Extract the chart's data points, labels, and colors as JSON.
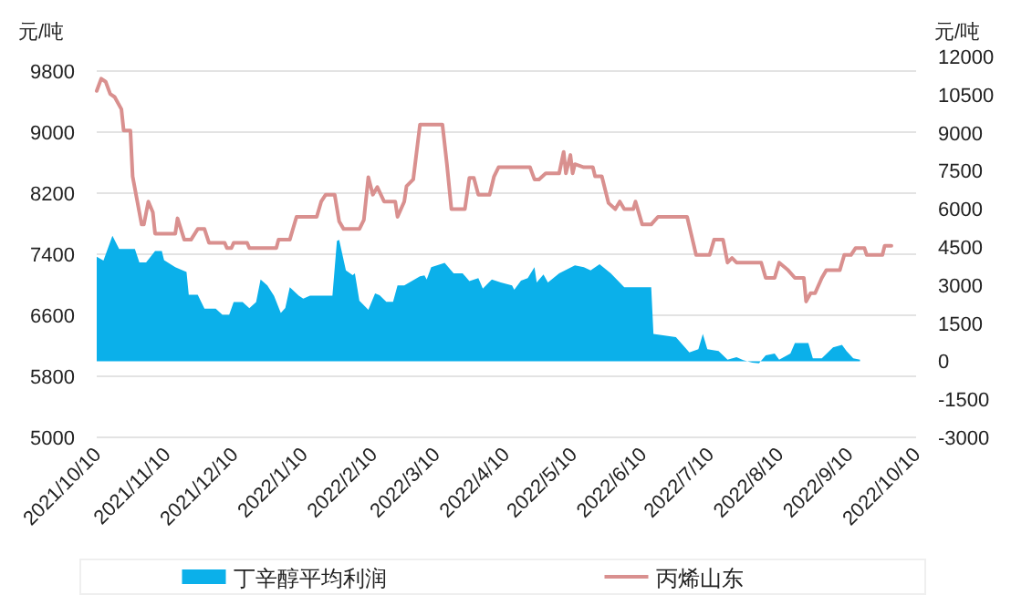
{
  "chart_data": {
    "type": "line",
    "ylabel": "元/吨",
    "y2label": "元/吨",
    "xlim": [
      "2021-10-10",
      "2022-10-10"
    ],
    "xticks": [
      {
        "value": "2021-10-10",
        "label": "2021/10/10"
      },
      {
        "value": "2021-11-10",
        "label": "2021/11/10"
      },
      {
        "value": "2021-12-10",
        "label": "2021/12/10"
      },
      {
        "value": "2022-01-10",
        "label": "2022/1/10"
      },
      {
        "value": "2022-02-10",
        "label": "2022/2/10"
      },
      {
        "value": "2022-03-10",
        "label": "2022/3/10"
      },
      {
        "value": "2022-04-10",
        "label": "2022/4/10"
      },
      {
        "value": "2022-05-10",
        "label": "2022/5/10"
      },
      {
        "value": "2022-06-10",
        "label": "2022/6/10"
      },
      {
        "value": "2022-07-10",
        "label": "2022/7/10"
      },
      {
        "value": "2022-08-10",
        "label": "2022/8/10"
      },
      {
        "value": "2022-09-10",
        "label": "2022/9/10"
      },
      {
        "value": "2022-10-10",
        "label": "2022/10/10"
      }
    ],
    "ylim": [
      5000,
      9800
    ],
    "yticks": [
      5000,
      5800,
      6600,
      7400,
      8200,
      9000,
      9800
    ],
    "y2lim": [
      -3000,
      12000
    ],
    "y2ticks": [
      -3000,
      -1500,
      0,
      1500,
      3000,
      4500,
      6000,
      7500,
      9000,
      10500,
      12000
    ],
    "grid": "y",
    "legend": "bottom",
    "series": [
      {
        "name": "丁辛醇平均利润",
        "type": "area",
        "axis": "y2",
        "color": "#0bb0ea",
        "x": [
          "2021-10-10",
          "2021-10-13",
          "2021-10-17",
          "2021-10-20",
          "2021-10-27",
          "2021-10-29",
          "2021-11-01",
          "2021-11-05",
          "2021-11-08",
          "2021-11-09",
          "2021-11-14",
          "2021-11-19",
          "2021-11-20",
          "2021-11-24",
          "2021-11-27",
          "2021-12-02",
          "2021-12-05",
          "2021-12-08",
          "2021-12-10",
          "2021-12-14",
          "2021-12-17",
          "2021-12-20",
          "2021-12-22",
          "2021-12-25",
          "2021-12-28",
          "2021-12-31",
          "2022-01-02",
          "2022-01-04",
          "2022-01-08",
          "2022-01-10",
          "2022-01-13",
          "2022-01-23",
          "2022-01-25",
          "2022-01-26",
          "2022-01-29",
          "2022-02-01",
          "2022-02-02",
          "2022-02-04",
          "2022-02-08",
          "2022-02-11",
          "2022-02-13",
          "2022-02-16",
          "2022-02-19",
          "2022-02-21",
          "2022-02-24",
          "2022-03-03",
          "2022-03-05",
          "2022-03-06",
          "2022-03-08",
          "2022-03-14",
          "2022-03-18",
          "2022-03-22",
          "2022-03-25",
          "2022-03-29",
          "2022-03-31",
          "2022-04-04",
          "2022-04-08",
          "2022-04-13",
          "2022-04-14",
          "2022-04-17",
          "2022-04-20",
          "2022-04-23",
          "2022-04-24",
          "2022-04-27",
          "2022-04-29",
          "2022-05-04",
          "2022-05-11",
          "2022-05-15",
          "2022-05-18",
          "2022-05-22",
          "2022-05-27",
          "2022-06-02",
          "2022-06-14",
          "2022-06-15",
          "2022-06-25",
          "2022-07-01",
          "2022-07-05",
          "2022-07-07",
          "2022-07-09",
          "2022-07-14",
          "2022-07-18",
          "2022-07-22",
          "2022-07-25",
          "2022-07-29",
          "2022-08-01",
          "2022-08-04",
          "2022-08-08",
          "2022-08-10",
          "2022-08-15",
          "2022-08-17",
          "2022-08-23",
          "2022-08-25",
          "2022-08-29",
          "2022-09-03",
          "2022-09-07",
          "2022-09-09",
          "2022-09-12",
          "2022-09-15"
        ],
        "values": [
          4110,
          3960,
          4940,
          4420,
          4420,
          3890,
          3890,
          4340,
          4340,
          3980,
          3700,
          3510,
          2620,
          2620,
          2070,
          2070,
          1830,
          1830,
          2330,
          2330,
          2090,
          2330,
          3220,
          2980,
          2570,
          1900,
          2100,
          2910,
          2580,
          2460,
          2580,
          2580,
          4730,
          4780,
          3580,
          3390,
          3460,
          2380,
          2020,
          2670,
          2600,
          2340,
          2340,
          2980,
          2980,
          3340,
          3380,
          3220,
          3700,
          3870,
          3460,
          3460,
          3150,
          3270,
          2860,
          3220,
          3100,
          2980,
          2810,
          3170,
          3270,
          3700,
          3100,
          3410,
          3100,
          3460,
          3770,
          3700,
          3580,
          3820,
          3460,
          2910,
          2910,
          1070,
          950,
          350,
          470,
          1070,
          470,
          400,
          60,
          160,
          40,
          -60,
          -80,
          230,
          300,
          60,
          300,
          710,
          710,
          110,
          110,
          540,
          640,
          400,
          110,
          60
        ]
      },
      {
        "name": "丙烯山东",
        "type": "line",
        "color": "#d9908f",
        "x": [
          "2021-10-10",
          "2021-10-12",
          "2021-10-14",
          "2021-10-16",
          "2021-10-18",
          "2021-10-21",
          "2021-10-22",
          "2021-10-25",
          "2021-10-26",
          "2021-10-30",
          "2021-10-31",
          "2021-11-02",
          "2021-11-04",
          "2021-11-05",
          "2021-11-14",
          "2021-11-15",
          "2021-11-18",
          "2021-11-21",
          "2021-11-24",
          "2021-11-27",
          "2021-11-29",
          "2021-12-06",
          "2021-12-07",
          "2021-12-09",
          "2021-12-10",
          "2021-12-16",
          "2021-12-17",
          "2021-12-29",
          "2021-12-30",
          "2022-01-04",
          "2022-01-07",
          "2022-01-16",
          "2022-01-18",
          "2022-01-20",
          "2022-01-24",
          "2022-01-26",
          "2022-01-28",
          "2022-02-04",
          "2022-02-05",
          "2022-02-06",
          "2022-02-08",
          "2022-02-10",
          "2022-02-12",
          "2022-02-15",
          "2022-02-20",
          "2022-02-21",
          "2022-02-24",
          "2022-02-25",
          "2022-02-28",
          "2022-03-03",
          "2022-03-13",
          "2022-03-15",
          "2022-03-17",
          "2022-03-23",
          "2022-03-25",
          "2022-03-27",
          "2022-03-29",
          "2022-04-03",
          "2022-04-05",
          "2022-04-07",
          "2022-04-13",
          "2022-04-21",
          "2022-04-23",
          "2022-04-25",
          "2022-04-28",
          "2022-05-04",
          "2022-05-06",
          "2022-05-07",
          "2022-05-09",
          "2022-05-10",
          "2022-05-11",
          "2022-05-15",
          "2022-05-19",
          "2022-05-20",
          "2022-05-23",
          "2022-05-26",
          "2022-05-29",
          "2022-05-31",
          "2022-06-02",
          "2022-06-06",
          "2022-06-07",
          "2022-06-08",
          "2022-06-10",
          "2022-06-14",
          "2022-06-17",
          "2022-06-30",
          "2022-07-04",
          "2022-07-10",
          "2022-07-12",
          "2022-07-16",
          "2022-07-18",
          "2022-07-20",
          "2022-07-22",
          "2022-08-02",
          "2022-08-04",
          "2022-08-08",
          "2022-08-10",
          "2022-08-14",
          "2022-08-17",
          "2022-08-21",
          "2022-08-22",
          "2022-08-24",
          "2022-08-26",
          "2022-08-29",
          "2022-08-31",
          "2022-09-06",
          "2022-09-08",
          "2022-09-11",
          "2022-09-13",
          "2022-09-17",
          "2022-09-18",
          "2022-09-25",
          "2022-09-26",
          "2022-09-29"
        ],
        "values": [
          9540,
          9700,
          9660,
          9500,
          9460,
          9300,
          9020,
          9020,
          8420,
          7790,
          7790,
          8090,
          7950,
          7670,
          7670,
          7870,
          7590,
          7590,
          7730,
          7730,
          7550,
          7550,
          7480,
          7480,
          7550,
          7550,
          7480,
          7480,
          7590,
          7590,
          7890,
          7890,
          8090,
          8180,
          8180,
          7830,
          7730,
          7730,
          7790,
          7850,
          8410,
          8180,
          8280,
          8090,
          8090,
          7890,
          8090,
          8290,
          8380,
          9100,
          9100,
          8580,
          7990,
          7990,
          8400,
          8400,
          8180,
          8180,
          8420,
          8540,
          8540,
          8540,
          8380,
          8380,
          8460,
          8460,
          8740,
          8460,
          8700,
          8460,
          8580,
          8540,
          8540,
          8420,
          8420,
          8070,
          7990,
          8090,
          7990,
          7990,
          8090,
          7990,
          7790,
          7790,
          7890,
          7890,
          7390,
          7390,
          7590,
          7590,
          7290,
          7350,
          7290,
          7290,
          7090,
          7090,
          7290,
          7190,
          7090,
          7090,
          6780,
          6890,
          6890,
          7090,
          7190,
          7190,
          7390,
          7390,
          7480,
          7480,
          7390,
          7390,
          7510,
          7510
        ]
      }
    ]
  }
}
